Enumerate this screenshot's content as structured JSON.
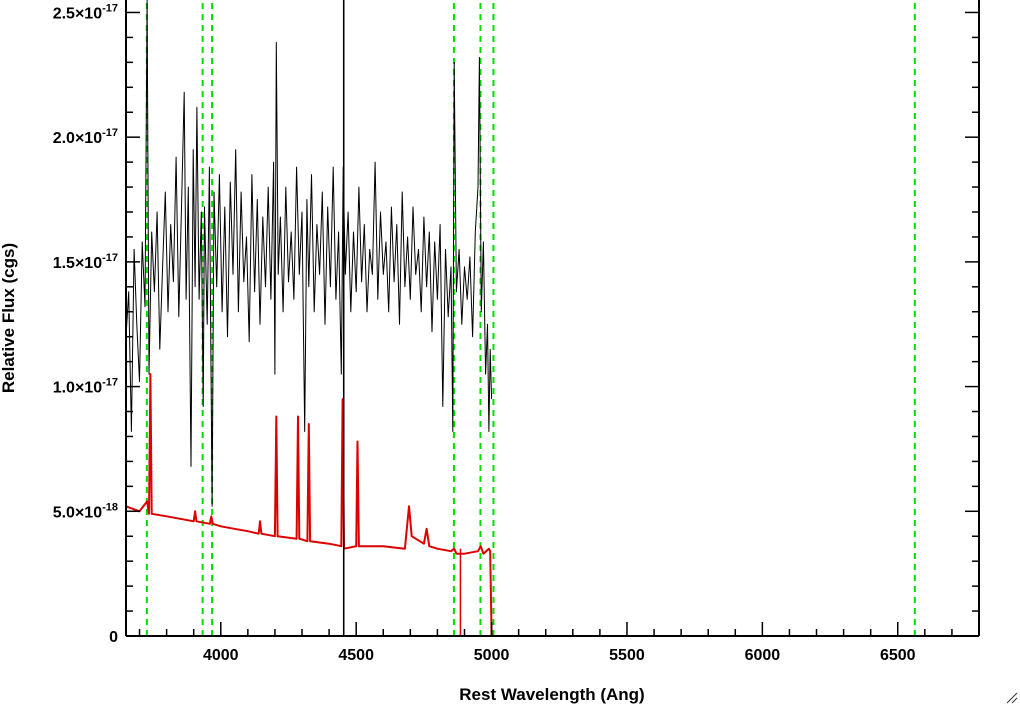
{
  "chart_data": {
    "type": "line",
    "title": "",
    "xlabel": "Rest Wavelength (Ang)",
    "ylabel": "Relative Flux (cgs)",
    "xlim": [
      3650,
      6800
    ],
    "ylim": [
      0,
      2.55e-17
    ],
    "grid": false,
    "legend": "none",
    "x_ticks": [
      {
        "value": 4000,
        "label": "4000"
      },
      {
        "value": 4500,
        "label": "4500"
      },
      {
        "value": 5000,
        "label": "5000"
      },
      {
        "value": 5500,
        "label": "5500"
      },
      {
        "value": 6000,
        "label": "6000"
      },
      {
        "value": 6500,
        "label": "6500"
      }
    ],
    "y_ticks": [
      {
        "value": 0,
        "label": "0"
      },
      {
        "value": 5e-18,
        "mantissa": "5.0",
        "exponent": "-18"
      },
      {
        "value": 1e-17,
        "mantissa": "1.0",
        "exponent": "-17"
      },
      {
        "value": 1.5e-17,
        "mantissa": "1.5",
        "exponent": "-17"
      },
      {
        "value": 2e-17,
        "mantissa": "2.0",
        "exponent": "-17"
      },
      {
        "value": 2.5e-17,
        "mantissa": "2.5",
        "exponent": "-17"
      }
    ],
    "times_symbol": "×10",
    "series": [
      {
        "color": "#000000",
        "style": "spectrum",
        "values_e17": [
          [
            3650,
            1.2
          ],
          [
            3660,
            1.38
          ],
          [
            3670,
            0.82
          ],
          [
            3680,
            1.55
          ],
          [
            3690,
            1.25
          ],
          [
            3700,
            1.02
          ],
          [
            3710,
            1.58
          ],
          [
            3720,
            1.32
          ],
          [
            3728,
            2.55
          ],
          [
            3735,
            1.05
          ],
          [
            3745,
            1.62
          ],
          [
            3755,
            1.38
          ],
          [
            3765,
            1.7
          ],
          [
            3775,
            1.15
          ],
          [
            3785,
            1.48
          ],
          [
            3795,
            1.78
          ],
          [
            3805,
            1.3
          ],
          [
            3815,
            1.65
          ],
          [
            3825,
            1.42
          ],
          [
            3835,
            1.92
          ],
          [
            3845,
            1.28
          ],
          [
            3855,
            1.72
          ],
          [
            3865,
            2.18
          ],
          [
            3872,
            1.35
          ],
          [
            3880,
            1.8
          ],
          [
            3890,
            0.68
          ],
          [
            3898,
            1.95
          ],
          [
            3905,
            1.4
          ],
          [
            3912,
            2.12
          ],
          [
            3920,
            1.35
          ],
          [
            3928,
            1.7
          ],
          [
            3935,
            0.92
          ],
          [
            3940,
            1.72
          ],
          [
            3950,
            1.25
          ],
          [
            3958,
            1.88
          ],
          [
            3968,
            0.52
          ],
          [
            3975,
            1.78
          ],
          [
            3985,
            1.4
          ],
          [
            3995,
            1.85
          ],
          [
            4005,
            1.3
          ],
          [
            4015,
            1.72
          ],
          [
            4025,
            1.2
          ],
          [
            4035,
            1.82
          ],
          [
            4045,
            1.45
          ],
          [
            4055,
            1.95
          ],
          [
            4065,
            1.3
          ],
          [
            4075,
            1.78
          ],
          [
            4085,
            1.42
          ],
          [
            4095,
            1.6
          ],
          [
            4105,
            1.18
          ],
          [
            4115,
            1.85
          ],
          [
            4125,
            1.38
          ],
          [
            4135,
            1.75
          ],
          [
            4145,
            1.25
          ],
          [
            4155,
            1.68
          ],
          [
            4165,
            1.4
          ],
          [
            4175,
            1.8
          ],
          [
            4185,
            1.35
          ],
          [
            4195,
            1.9
          ],
          [
            4200,
            1.05
          ],
          [
            4205,
            2.38
          ],
          [
            4212,
            1.45
          ],
          [
            4220,
            1.68
          ],
          [
            4230,
            1.3
          ],
          [
            4240,
            1.8
          ],
          [
            4250,
            1.42
          ],
          [
            4260,
            1.62
          ],
          [
            4270,
            1.35
          ],
          [
            4280,
            1.88
          ],
          [
            4290,
            1.45
          ],
          [
            4300,
            1.7
          ],
          [
            4310,
            0.82
          ],
          [
            4318,
            1.75
          ],
          [
            4325,
            1.4
          ],
          [
            4335,
            1.85
          ],
          [
            4345,
            1.3
          ],
          [
            4355,
            1.65
          ],
          [
            4365,
            1.45
          ],
          [
            4375,
            1.78
          ],
          [
            4385,
            1.25
          ],
          [
            4395,
            1.72
          ],
          [
            4405,
            1.4
          ],
          [
            4415,
            1.88
          ],
          [
            4425,
            1.35
          ],
          [
            4435,
            1.62
          ],
          [
            4445,
            1.05
          ],
          [
            4452,
            1.88
          ],
          [
            4460,
            1.45
          ],
          [
            4470,
            1.7
          ],
          [
            4480,
            1.3
          ],
          [
            4490,
            1.62
          ],
          [
            4500,
            1.38
          ],
          [
            4510,
            1.8
          ],
          [
            4520,
            1.42
          ],
          [
            4530,
            1.65
          ],
          [
            4540,
            1.3
          ],
          [
            4550,
            1.55
          ],
          [
            4560,
            1.45
          ],
          [
            4570,
            1.9
          ],
          [
            4580,
            1.35
          ],
          [
            4590,
            1.7
          ],
          [
            4600,
            1.45
          ],
          [
            4610,
            1.58
          ],
          [
            4620,
            1.3
          ],
          [
            4630,
            1.72
          ],
          [
            4640,
            1.42
          ],
          [
            4650,
            1.65
          ],
          [
            4660,
            1.25
          ],
          [
            4670,
            1.78
          ],
          [
            4680,
            1.4
          ],
          [
            4690,
            1.6
          ],
          [
            4700,
            1.35
          ],
          [
            4710,
            1.72
          ],
          [
            4720,
            1.45
          ],
          [
            4730,
            1.55
          ],
          [
            4740,
            1.3
          ],
          [
            4750,
            1.68
          ],
          [
            4760,
            1.4
          ],
          [
            4770,
            1.62
          ],
          [
            4780,
            1.22
          ],
          [
            4790,
            1.58
          ],
          [
            4800,
            1.35
          ],
          [
            4810,
            1.65
          ],
          [
            4820,
            0.92
          ],
          [
            4830,
            1.55
          ],
          [
            4840,
            1.28
          ],
          [
            4850,
            1.48
          ],
          [
            4857,
            0.82
          ],
          [
            4862,
            2.3
          ],
          [
            4870,
            1.38
          ],
          [
            4880,
            1.55
          ],
          [
            4890,
            1.25
          ],
          [
            4900,
            1.48
          ],
          [
            4910,
            1.35
          ],
          [
            4920,
            1.52
          ],
          [
            4930,
            1.2
          ],
          [
            4940,
            1.62
          ],
          [
            4950,
            1.8
          ],
          [
            4955,
            2.32
          ],
          [
            4962,
            1.3
          ],
          [
            4970,
            1.58
          ],
          [
            4978,
            1.05
          ],
          [
            4985,
            1.25
          ],
          [
            4990,
            0.82
          ],
          [
            4995,
            1.15
          ],
          [
            5000,
            0.95
          ]
        ]
      },
      {
        "color": "#dd0000",
        "style": "model",
        "values_e17": [
          [
            3650,
            0.52
          ],
          [
            3700,
            0.5
          ],
          [
            3728,
            0.54
          ],
          [
            3735,
            0.49
          ],
          [
            3740,
            1.05
          ],
          [
            3745,
            0.49
          ],
          [
            3800,
            0.48
          ],
          [
            3850,
            0.47
          ],
          [
            3900,
            0.46
          ],
          [
            3905,
            0.5
          ],
          [
            3910,
            0.46
          ],
          [
            3960,
            0.45
          ],
          [
            3965,
            0.48
          ],
          [
            3970,
            0.45
          ],
          [
            4000,
            0.44
          ],
          [
            4050,
            0.43
          ],
          [
            4100,
            0.42
          ],
          [
            4140,
            0.41
          ],
          [
            4145,
            0.46
          ],
          [
            4150,
            0.41
          ],
          [
            4200,
            0.4
          ],
          [
            4205,
            0.88
          ],
          [
            4210,
            0.4
          ],
          [
            4280,
            0.39
          ],
          [
            4285,
            0.88
          ],
          [
            4290,
            0.39
          ],
          [
            4320,
            0.38
          ],
          [
            4325,
            0.85
          ],
          [
            4330,
            0.38
          ],
          [
            4400,
            0.37
          ],
          [
            4445,
            0.36
          ],
          [
            4450,
            0.95
          ],
          [
            4455,
            0.35
          ],
          [
            4500,
            0.36
          ],
          [
            4505,
            0.78
          ],
          [
            4510,
            0.36
          ],
          [
            4600,
            0.36
          ],
          [
            4680,
            0.35
          ],
          [
            4695,
            0.52
          ],
          [
            4705,
            0.4
          ],
          [
            4750,
            0.37
          ],
          [
            4760,
            0.43
          ],
          [
            4770,
            0.36
          ],
          [
            4800,
            0.35
          ],
          [
            4850,
            0.34
          ],
          [
            4862,
            0.35
          ],
          [
            4870,
            0.33
          ],
          [
            4900,
            0.33
          ],
          [
            4950,
            0.34
          ],
          [
            4960,
            0.36
          ],
          [
            4970,
            0.33
          ],
          [
            4990,
            0.35
          ],
          [
            4995,
            0.34
          ],
          [
            5000,
            0.0
          ],
          [
            6800,
            0.0
          ]
        ]
      }
    ],
    "vertical_lines": [
      {
        "x": 3727,
        "color": "#00dd00",
        "dash": true
      },
      {
        "x": 3933,
        "color": "#00dd00",
        "dash": true
      },
      {
        "x": 3968,
        "color": "#00dd00",
        "dash": true
      },
      {
        "x": 4861,
        "color": "#00dd00",
        "dash": true
      },
      {
        "x": 4959,
        "color": "#00dd00",
        "dash": true
      },
      {
        "x": 5007,
        "color": "#00dd00",
        "dash": true
      },
      {
        "x": 6563,
        "color": "#00dd00",
        "dash": true
      },
      {
        "x": 4454,
        "color": "#000000",
        "dash": false
      },
      {
        "x": 4885,
        "color": "#dd0000",
        "dash": false,
        "ymax_e17": 0.35
      }
    ]
  }
}
